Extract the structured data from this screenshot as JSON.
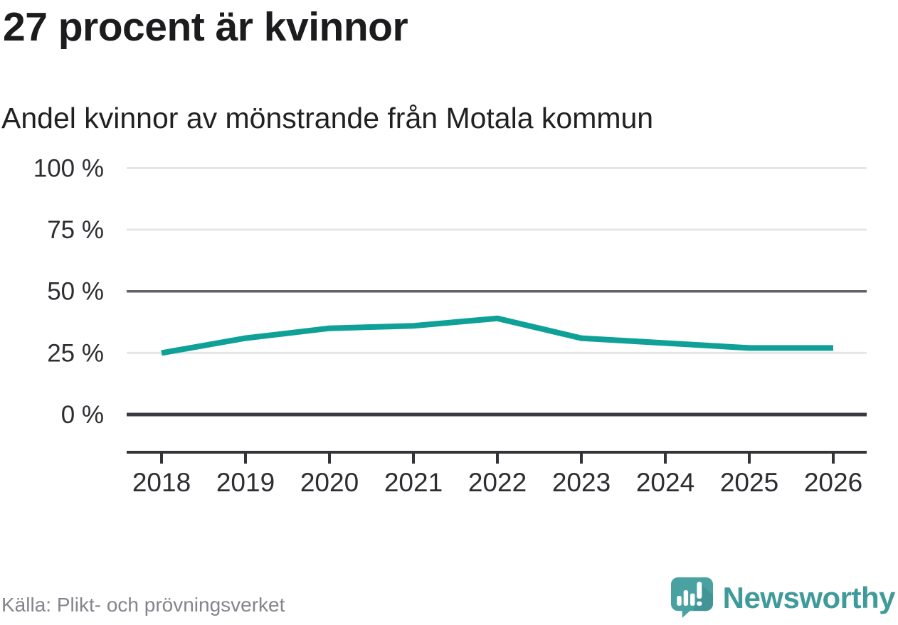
{
  "header": {
    "title": "27 procent är kvinnor",
    "subtitle": "Andel kvinnor av mönstrande från Motala kommun"
  },
  "chart_data": {
    "type": "line",
    "title": "27 procent är kvinnor",
    "subtitle": "Andel kvinnor av mönstrande från Motala kommun",
    "x": [
      2018,
      2019,
      2020,
      2021,
      2022,
      2023,
      2024,
      2025,
      2026
    ],
    "x_tick_labels": [
      "2018",
      "2019",
      "2020",
      "2021",
      "2022",
      "2023",
      "2024",
      "2025",
      "2026"
    ],
    "series": [
      {
        "name": "Andel kvinnor av mönstrande",
        "values": [
          25,
          31,
          35,
          36,
          39,
          31,
          29,
          27,
          27
        ]
      }
    ],
    "unit": "%",
    "ylim": [
      0,
      100
    ],
    "y_ticks": [
      0,
      25,
      50,
      75,
      100
    ],
    "y_tick_labels": [
      "0 %",
      "25 %",
      "50 %",
      "75 %",
      "100 %"
    ],
    "grid": "horizontal",
    "legend": "none",
    "line_color": "#0fa197"
  },
  "footer": {
    "source": "Källa: Plikt- och prövningsverket",
    "brand": "Newsworthy"
  },
  "colors": {
    "accent_teal": "#0fa197",
    "brand_teal": "#3f9b99",
    "logo_bubble": "#4aa1a2",
    "logo_bubble_shade": "#3d8f90",
    "text_dark": "#1c1c1e",
    "text_gray": "#84848c",
    "grid_light": "#e6e6e8",
    "grid_mid": "#63636b",
    "grid_zero": "#3a3a40"
  },
  "icons": {
    "logo": "newsworthy-speech-bubble-bar-chart-icon"
  }
}
